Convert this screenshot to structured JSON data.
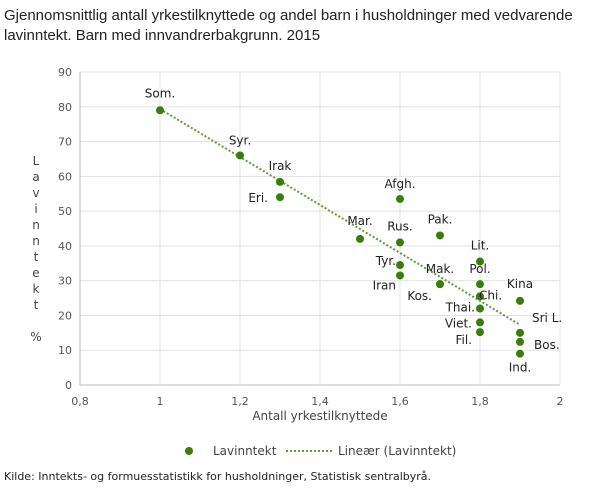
{
  "title": "Gjennomsnittlig antall yrkestilknyttede og andel barn i husholdninger med vedvarende lavinntekt. Barn med innvandrerbakgrunn. 2015",
  "source": "Kilde: Inntekts- og formuesstatistikk for husholdninger, Statistisk sentralbyrå.",
  "chart_data": {
    "type": "scatter",
    "xlabel": "Antall yrkestilknyttede",
    "ylabel": "Lavinntekt %",
    "xlim": [
      0.8,
      2
    ],
    "ylim": [
      0,
      90
    ],
    "xticks": [
      "0,8",
      "1",
      "1,2",
      "1,4",
      "1,6",
      "1,8",
      "2"
    ],
    "yticks": [
      "0",
      "10",
      "20",
      "30",
      "40",
      "50",
      "60",
      "70",
      "80",
      "90"
    ],
    "grid": true,
    "legend_position": "bottom",
    "legend": [
      "Lavinntekt",
      "Lineær (Lavinntekt)"
    ],
    "color": "#3a7d0a",
    "trend_color": "#5aa02c",
    "points": [
      {
        "label": "Som.",
        "x": 1.0,
        "y": 79
      },
      {
        "label": "Syr.",
        "x": 1.2,
        "y": 66
      },
      {
        "label": "Irak",
        "x": 1.3,
        "y": 58.4
      },
      {
        "label": "Eri.",
        "x": 1.3,
        "y": 54
      },
      {
        "label": "Mar.",
        "x": 1.5,
        "y": 42
      },
      {
        "label": "Afgh.",
        "x": 1.6,
        "y": 53.5
      },
      {
        "label": "Rus.",
        "x": 1.6,
        "y": 41
      },
      {
        "label": "Tyr.",
        "x": 1.6,
        "y": 34.5
      },
      {
        "label": "Iran",
        "x": 1.6,
        "y": 31.5
      },
      {
        "label": "Pak.",
        "x": 1.7,
        "y": 43
      },
      {
        "label": "Mak.",
        "x": 1.7,
        "y": 29
      },
      {
        "label": "Kos.",
        "x": 1.7,
        "y": 29
      },
      {
        "label": "Lit.",
        "x": 1.8,
        "y": 35.5
      },
      {
        "label": "Pol.",
        "x": 1.8,
        "y": 29
      },
      {
        "label": "Chi.",
        "x": 1.8,
        "y": 25.5
      },
      {
        "label": "Thai.",
        "x": 1.8,
        "y": 22
      },
      {
        "label": "Viet.",
        "x": 1.8,
        "y": 18
      },
      {
        "label": "Fil.",
        "x": 1.8,
        "y": 15.2
      },
      {
        "label": "Kina",
        "x": 1.9,
        "y": 24.2
      },
      {
        "label": "Sri L.",
        "x": 1.9,
        "y": 15
      },
      {
        "label": "Bos.",
        "x": 1.9,
        "y": 12.4
      },
      {
        "label": "Ind.",
        "x": 1.9,
        "y": 9
      }
    ]
  }
}
